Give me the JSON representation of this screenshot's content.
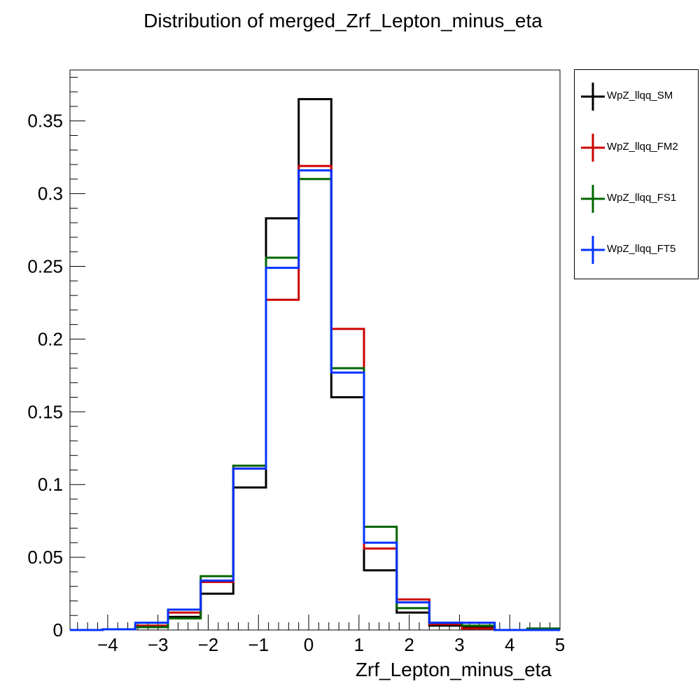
{
  "chart_data": {
    "type": "line",
    "title": "Distribution of merged_Zrf_Lepton_minus_eta",
    "xlabel": "Zrf_Lepton_minus_eta",
    "ylabel": "",
    "xlim": [
      -4.75,
      5.0
    ],
    "ylim": [
      0,
      0.385
    ],
    "x_ticks": [
      "−4",
      "−3",
      "−2",
      "−1",
      "0",
      "1",
      "2",
      "3",
      "4",
      "5"
    ],
    "x_tick_values": [
      -4,
      -3,
      -2,
      -1,
      0,
      1,
      2,
      3,
      4,
      5
    ],
    "y_ticks": [
      "0",
      "0.05",
      "0.1",
      "0.15",
      "0.2",
      "0.25",
      "0.3",
      "0.35"
    ],
    "y_tick_values": [
      0,
      0.05,
      0.1,
      0.15,
      0.2,
      0.25,
      0.3,
      0.35
    ],
    "bin_edges": [
      -4.75,
      -4.1,
      -3.45,
      -2.8,
      -2.15,
      -1.5,
      -0.85,
      -0.2,
      0.45,
      1.1,
      1.75,
      2.4,
      3.05,
      3.7,
      4.35,
      5.0
    ],
    "legend_position": "right",
    "grid": false,
    "series": [
      {
        "name": "WpZ_llqq_SM",
        "color": "#000000",
        "values": [
          0.0,
          0.0005,
          0.002,
          0.009,
          0.025,
          0.098,
          0.283,
          0.365,
          0.16,
          0.041,
          0.012,
          0.003,
          0.002,
          0.0,
          0.0
        ]
      },
      {
        "name": "WpZ_llqq_FM2",
        "color": "#cc0000",
        "values": [
          0.0,
          0.0005,
          0.003,
          0.012,
          0.033,
          0.111,
          0.227,
          0.319,
          0.207,
          0.056,
          0.021,
          0.004,
          0.001,
          0.0,
          0.0
        ]
      },
      {
        "name": "WpZ_llqq_FS1",
        "color": "#006600",
        "values": [
          0.0,
          0.0005,
          0.002,
          0.008,
          0.037,
          0.113,
          0.256,
          0.31,
          0.18,
          0.071,
          0.015,
          0.005,
          0.003,
          0.0,
          0.001
        ]
      },
      {
        "name": "WpZ_llqq_FT5",
        "color": "#0033ff",
        "values": [
          0.0,
          0.0005,
          0.005,
          0.014,
          0.034,
          0.111,
          0.249,
          0.316,
          0.177,
          0.06,
          0.019,
          0.005,
          0.005,
          0.0,
          0.0
        ]
      }
    ]
  }
}
